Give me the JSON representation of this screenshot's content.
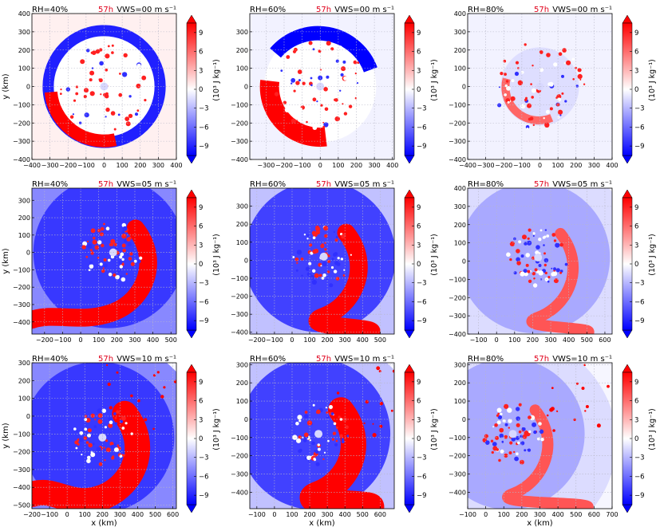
{
  "figure": {
    "time_label": "57h",
    "colorbar_unit": "(10³ J kg⁻¹)",
    "x_axis_label": "x (km)",
    "y_axis_label": "y (km)"
  },
  "colors": {
    "time_label": "#e0001b",
    "positive": "#ff0000",
    "negative": "#0000ff",
    "grid": "#b8b8c8"
  },
  "chart_data": {
    "type": "heatmap",
    "colorbar": {
      "ticks": [
        9,
        6,
        3,
        0,
        -3,
        -6,
        -9
      ],
      "tick_labels": [
        "9",
        "6",
        "3",
        "0",
        "−3",
        "−6",
        "−9"
      ],
      "range": [
        -10.5,
        10.5
      ],
      "extend": "both"
    },
    "panels": [
      {
        "row": 0,
        "col": 0,
        "rh_label": "RH=40%",
        "vws_label": "VWS=00 m s⁻¹",
        "xlim": [
          -400,
          400
        ],
        "ylim": [
          -400,
          400
        ],
        "xticks": [
          -400,
          -300,
          -200,
          -100,
          0,
          100,
          200,
          300,
          400
        ],
        "yticks": [
          -400,
          -300,
          -200,
          -100,
          0,
          100,
          200,
          300,
          400
        ],
        "show_xlabel": false,
        "show_ylabel": true
      },
      {
        "row": 0,
        "col": 1,
        "rh_label": "RH=60%",
        "vws_label": "VWS=00 m s⁻¹",
        "xlim": [
          -390,
          410
        ],
        "ylim": [
          -400,
          400
        ],
        "xticks": [
          -300,
          -200,
          -100,
          0,
          100,
          200,
          300,
          400
        ],
        "yticks": [
          -400,
          -300,
          -200,
          -100,
          0,
          100,
          200,
          300
        ],
        "show_xlabel": false,
        "show_ylabel": false
      },
      {
        "row": 0,
        "col": 2,
        "rh_label": "RH=80%",
        "vws_label": "VWS=00 m s⁻¹",
        "xlim": [
          -400,
          400
        ],
        "ylim": [
          -400,
          400
        ],
        "xticks": [
          -400,
          -300,
          -200,
          -100,
          0,
          100,
          200,
          300,
          400
        ],
        "yticks": [
          -400,
          -300,
          -200,
          -100,
          0,
          100,
          200,
          300,
          400
        ],
        "show_xlabel": false,
        "show_ylabel": false
      },
      {
        "row": 1,
        "col": 0,
        "rh_label": "RH=40%",
        "vws_label": "VWS=05 m s⁻¹",
        "xlim": [
          -270,
          530
        ],
        "ylim": [
          -470,
          370
        ],
        "xticks": [
          -200,
          -100,
          0,
          100,
          200,
          300,
          400,
          500
        ],
        "yticks": [
          -400,
          -300,
          -200,
          -100,
          0,
          100,
          200,
          300
        ],
        "show_xlabel": false,
        "show_ylabel": true
      },
      {
        "row": 1,
        "col": 1,
        "rh_label": "RH=60%",
        "vws_label": "VWS=05 m s⁻¹",
        "xlim": [
          -240,
          580
        ],
        "ylim": [
          -410,
          400
        ],
        "xticks": [
          -200,
          -100,
          0,
          100,
          200,
          300,
          400,
          500
        ],
        "yticks": [
          -400,
          -300,
          -200,
          -100,
          0,
          100,
          200,
          300
        ],
        "show_xlabel": false,
        "show_ylabel": false
      },
      {
        "row": 1,
        "col": 2,
        "rh_label": "RH=80%",
        "vws_label": "VWS=05 m s⁻¹",
        "xlim": [
          -160,
          640
        ],
        "ylim": [
          -400,
          400
        ],
        "xticks": [
          -100,
          0,
          100,
          200,
          300,
          400,
          500,
          600
        ],
        "yticks": [
          -400,
          -300,
          -200,
          -100,
          0,
          100,
          200,
          300,
          400
        ],
        "show_xlabel": false,
        "show_ylabel": false
      },
      {
        "row": 2,
        "col": 0,
        "rh_label": "RH=40%",
        "vws_label": "VWS=10 m s⁻¹",
        "xlim": [
          -200,
          620
        ],
        "ylim": [
          -520,
          300
        ],
        "xticks": [
          -200,
          -100,
          0,
          100,
          200,
          300,
          400,
          500,
          600
        ],
        "yticks": [
          -500,
          -400,
          -300,
          -200,
          -100,
          0,
          100,
          200,
          300
        ],
        "show_xlabel": true,
        "show_ylabel": true
      },
      {
        "row": 2,
        "col": 1,
        "rh_label": "RH=60%",
        "vws_label": "VWS=10 m s⁻¹",
        "xlim": [
          -140,
          680
        ],
        "ylim": [
          -490,
          310
        ],
        "xticks": [
          -100,
          0,
          100,
          200,
          300,
          400,
          500,
          600
        ],
        "yticks": [
          -400,
          -300,
          -200,
          -100,
          0,
          100,
          200,
          300
        ],
        "show_xlabel": true,
        "show_ylabel": false
      },
      {
        "row": 2,
        "col": 2,
        "rh_label": "RH=80%",
        "vws_label": "VWS=10 m s⁻¹",
        "xlim": [
          -100,
          700
        ],
        "ylim": [
          -490,
          310
        ],
        "xticks": [
          -100,
          0,
          100,
          200,
          300,
          400,
          500,
          600,
          700
        ],
        "yticks": [
          -400,
          -300,
          -200,
          -100,
          0,
          100,
          200,
          300
        ],
        "show_xlabel": true,
        "show_ylabel": false
      }
    ]
  }
}
